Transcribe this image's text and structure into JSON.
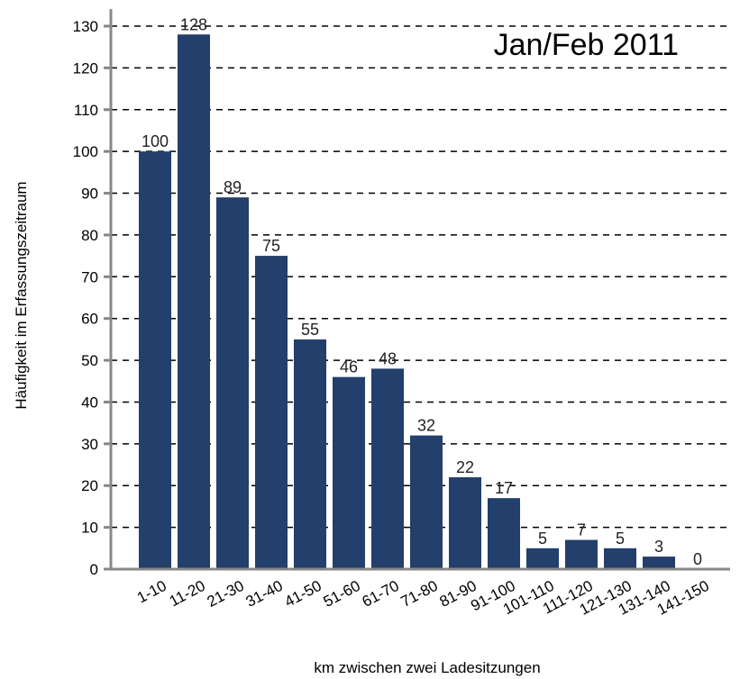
{
  "chart_data": {
    "type": "bar",
    "annotation": "Jan/Feb 2011",
    "xlabel": "km zwischen zwei Ladesitzungen",
    "ylabel": "Häufigkeit im Erfassungszeitraum",
    "categories": [
      "1-10",
      "11-20",
      "21-30",
      "31-40",
      "41-50",
      "51-60",
      "61-70",
      "71-80",
      "81-90",
      "91-100",
      "101-110",
      "111-120",
      "121-130",
      "131-140",
      "141-150"
    ],
    "values": [
      100,
      128,
      89,
      75,
      55,
      46,
      48,
      32,
      22,
      17,
      5,
      7,
      5,
      3,
      0
    ],
    "yticks": [
      0,
      10,
      20,
      30,
      40,
      50,
      60,
      70,
      80,
      90,
      100,
      110,
      120,
      130
    ],
    "ylim": [
      0,
      130
    ],
    "grid": true,
    "bar_color": "#233f6b"
  }
}
